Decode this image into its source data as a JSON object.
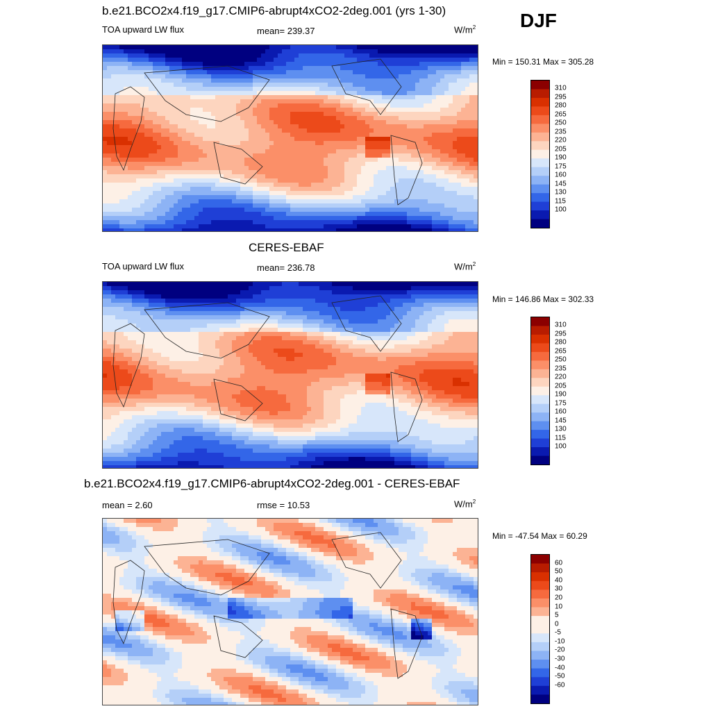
{
  "season": "DJF",
  "panels": [
    {
      "title": "b.e21.BCO2x4.f19_g17.CMIP6-abrupt4xCO2-2deg.001 (yrs 1-30)",
      "left_label": "TOA upward LW flux",
      "center_label": "mean= 239.37",
      "units": "W/m",
      "units_exp": "2",
      "minmax": "Min = 150.31 Max = 305.28",
      "map_kind": "field"
    },
    {
      "title": "CERES-EBAF",
      "left_label": "TOA upward LW flux",
      "center_label": "mean= 236.78",
      "units": "W/m",
      "units_exp": "2",
      "minmax": "Min = 146.86 Max = 302.33",
      "map_kind": "field"
    },
    {
      "title": "b.e21.BCO2x4.f19_g17.CMIP6-abrupt4xCO2-2deg.001 - CERES-EBAF",
      "left_label": "mean =   2.60",
      "center_label": "rmse =  10.53",
      "units": "W/m",
      "units_exp": "2",
      "minmax": "Min = -47.54 Max =  60.29",
      "map_kind": "diff"
    }
  ],
  "colorbars": {
    "field": {
      "labels": [
        "310",
        "295",
        "280",
        "265",
        "250",
        "235",
        "220",
        "205",
        "190",
        "175",
        "160",
        "145",
        "130",
        "115",
        "100"
      ],
      "colors": [
        "#8b0000",
        "#b81c00",
        "#d93000",
        "#ec4a1a",
        "#f66a3e",
        "#fb8f68",
        "#fcb394",
        "#fdd5bf",
        "#fdf0e6",
        "#d7e6fa",
        "#b4cff8",
        "#8db3f5",
        "#5e8ff0",
        "#3366e8",
        "#1f3fd6",
        "#0a1ab0",
        "#000080"
      ]
    },
    "diff": {
      "labels": [
        "60",
        "50",
        "40",
        "30",
        "20",
        "10",
        "5",
        "0",
        "-5",
        "-10",
        "-20",
        "-30",
        "-40",
        "-50",
        "-60"
      ],
      "colors": [
        "#8b0000",
        "#b81c00",
        "#d93000",
        "#ec4a1a",
        "#f66a3e",
        "#fb8f68",
        "#fcb394",
        "#fdf0e6",
        "#fdf0e6",
        "#d7e6fa",
        "#b4cff8",
        "#8db3f5",
        "#5e8ff0",
        "#3366e8",
        "#1f3fd6",
        "#0a1ab0",
        "#000080"
      ]
    }
  }
}
